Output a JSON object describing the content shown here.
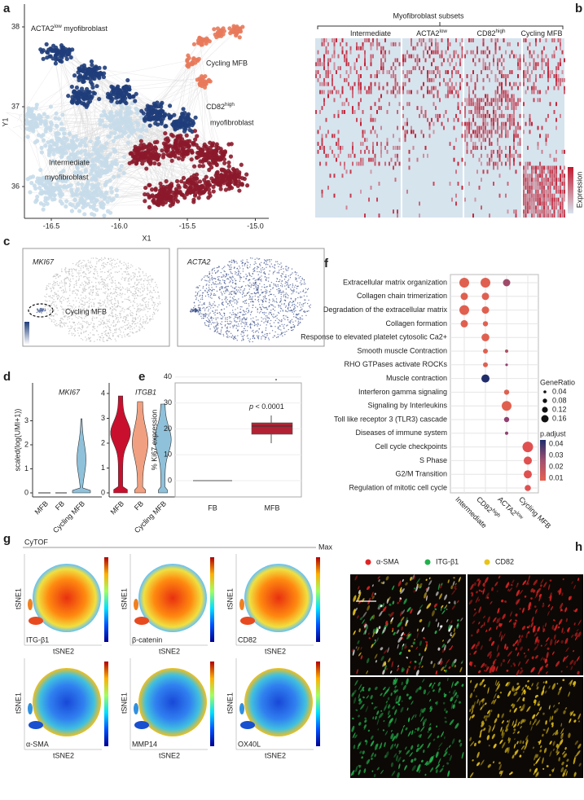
{
  "a": {
    "label": "a",
    "x_label": "X1",
    "y_label": "Y1",
    "x_ticks": [
      "-16.5",
      "-16.0",
      "-15.5",
      "-15.0"
    ],
    "y_ticks": [
      "38",
      "37",
      "36"
    ],
    "acta2": {
      "name": "ACTA2",
      "sup": "low",
      "tail": " myofibroblast"
    },
    "cycling": "Cycling MFB",
    "cd82": {
      "name": "CD82",
      "sup": "high",
      "line2": "myofibroblast"
    },
    "intermediate": {
      "line1": "Intermediate",
      "line2": "myofibroblast"
    }
  },
  "b": {
    "label": "b",
    "title": "Myofibroblast subsets",
    "columns": [
      {
        "name": "Intermediate"
      },
      {
        "name": "ACTA2",
        "sup": "low"
      },
      {
        "name": "CD82",
        "sup": "high"
      },
      {
        "name": "Cycling MFB"
      }
    ],
    "legend_title": "Expression"
  },
  "c": {
    "label": "c",
    "panels": [
      "MKI67",
      "ACTA2"
    ],
    "annotation": "Cycling  MFB"
  },
  "d": {
    "label": "d",
    "y_label": "scaled(log(UMI+1))",
    "panels": [
      {
        "gene": "MKI67",
        "y_ticks": [
          "0",
          "1",
          "2",
          "3"
        ],
        "categories": [
          "MFB",
          "FB",
          "Cycling MFB"
        ]
      },
      {
        "gene": "ITGB1",
        "y_ticks": [
          "0",
          "1",
          "2",
          "3",
          "4"
        ],
        "categories": [
          "MFB",
          "FB",
          "Cycling MFB"
        ]
      }
    ]
  },
  "e": {
    "label": "e",
    "y_label": "% Ki67 expression",
    "y_ticks": [
      "0",
      "10",
      "20",
      "30",
      "40"
    ],
    "categories": [
      "FB",
      "MFB"
    ],
    "annotation": {
      "p": "p",
      "rest": " < 0.0001"
    }
  },
  "f": {
    "label": "f",
    "terms": [
      "Extracellular matrix organization",
      "Collagen chain trimerization",
      "Degradation of the extracellular matrix",
      "Collagen formation",
      "Response to elevated platelet cytosolic Ca2+",
      "Smooth muscle Contraction",
      "RHO GTPases activate ROCKs",
      "Muscle contraction",
      "Interferon gamma signaling",
      "Signaling by Interleukins",
      "Toll like receptor 3 (TLR3) cascade",
      "Diseases of immune system",
      "Cell cycle checkpoints",
      "S Phase",
      "G2/M Transition",
      "Regulation of mitotic cell cycle"
    ],
    "columns": [
      {
        "name": "Intermediate"
      },
      {
        "name": "CD82",
        "sup": "high"
      },
      {
        "name": "ACTA2",
        "sup": "low"
      },
      {
        "name": "Cycling MFB"
      }
    ],
    "size_legend": {
      "title": "GeneRatio",
      "ticks": [
        "0.04",
        "0.08",
        "0.12",
        "0.16"
      ]
    },
    "color_legend": {
      "title": "p.adjust",
      "ticks": [
        "0.04",
        "0.03",
        "0.02",
        "0.01"
      ]
    }
  },
  "g": {
    "label": "g",
    "method": "CyTOF",
    "max_label": "Max",
    "x_axis": "tSNE2",
    "y_axis": "tSNE1",
    "markers": [
      "ITG-β1",
      "β-catenin",
      "CD82",
      "α-SMA",
      "MMP14",
      "OX40L"
    ]
  },
  "h": {
    "label": "h",
    "channels": [
      {
        "name": "α-SMA",
        "color": "#e02424"
      },
      {
        "name": "ITG-β1",
        "color": "#22b14c"
      },
      {
        "name": "CD82",
        "color": "#e8c41a"
      }
    ]
  }
}
